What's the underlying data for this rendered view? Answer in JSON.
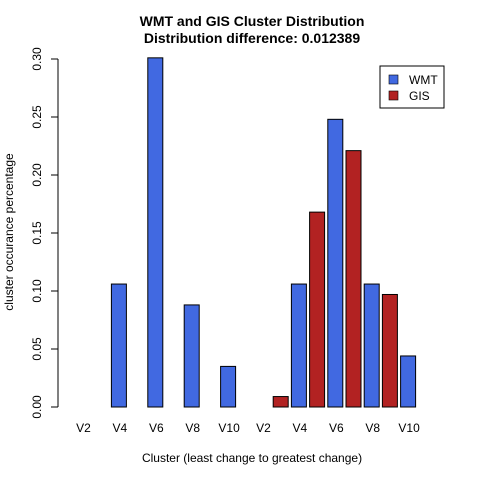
{
  "chart_data": {
    "type": "bar",
    "title": "WMT and GIS Cluster Distribution",
    "subtitle": "Distribution difference: 0.012389",
    "xlabel": "Cluster (least change to greatest change)",
    "ylabel": "cluster occurance percentage",
    "ylim": [
      0,
      0.3
    ],
    "yticks": [
      "0.00",
      "0.05",
      "0.10",
      "0.15",
      "0.20",
      "0.25",
      "0.30"
    ],
    "groups": [
      {
        "ticks": [
          "V2",
          "V4",
          "V6",
          "V8",
          "V10"
        ],
        "values": [
          0.0,
          0.0,
          0.106,
          0.0,
          0.301,
          0.0,
          0.088,
          0.0,
          0.035,
          0.0
        ],
        "colors": [
          "#4169E1",
          "#4169E1",
          "#4169E1",
          "#B22222",
          "#4169E1",
          "#B22222",
          "#4169E1",
          "#B22222",
          "#4169E1",
          "#B22222"
        ]
      },
      {
        "ticks": [
          "V2",
          "V4",
          "V6",
          "V8",
          "V10"
        ],
        "values": [
          0.0,
          0.009,
          0.106,
          0.168,
          0.248,
          0.221,
          0.106,
          0.097,
          0.044,
          0.0
        ],
        "colors": [
          "#4169E1",
          "#B22222",
          "#4169E1",
          "#B22222",
          "#4169E1",
          "#B22222",
          "#4169E1",
          "#B22222",
          "#4169E1",
          "#B22222"
        ]
      }
    ],
    "series": [
      {
        "name": "WMT",
        "color": "#4169E1"
      },
      {
        "name": "GIS",
        "color": "#B22222"
      }
    ],
    "legend_position": "top-right",
    "grid": false
  }
}
